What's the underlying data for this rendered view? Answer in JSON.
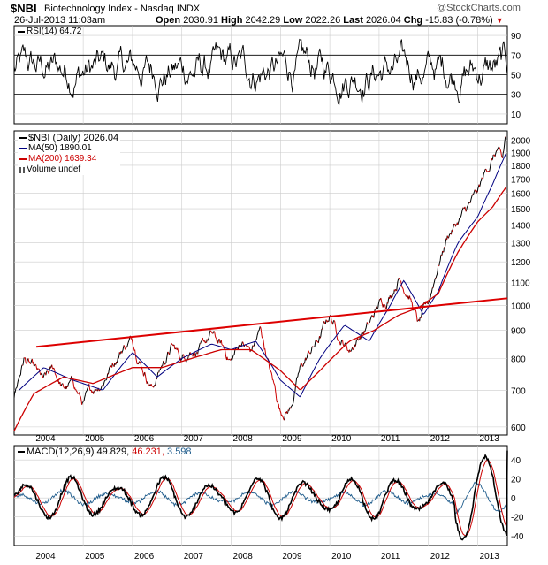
{
  "header": {
    "symbol": "$NBI",
    "name": "Biotechnology Index - Nasdaq INDX",
    "watermark": "@StockCharts.com",
    "date": "26-Jul-2013 11:03am",
    "open_label": "Open",
    "open": "2030.91",
    "high_label": "High",
    "high": "2042.29",
    "low_label": "Low",
    "low": "2022.26",
    "last_label": "Last",
    "last": "2026.04",
    "chg_label": "Chg",
    "chg": "-15.83 (-0.78%)",
    "chg_arrow": "▼"
  },
  "colors": {
    "price": "#000000",
    "price_red": "#cc0000",
    "ma50": "#000080",
    "ma200": "#cc0000",
    "trend": "#dd0000",
    "macd_signal": "#cc0000",
    "macd_hist": "#1f5c8c",
    "grid": "#cccccc"
  },
  "rsi_panel": {
    "legend": "RSI(14) 64.72",
    "ticks": [
      "90",
      "70",
      "50",
      "30",
      "10"
    ]
  },
  "price_panel": {
    "legend": [
      {
        "text": "$NBI (Daily) 2026.04",
        "color": "#000000",
        "kind": "line"
      },
      {
        "text": "MA(50) 1890.01",
        "color": "#000080",
        "kind": "line"
      },
      {
        "text": "MA(200) 1639.34",
        "color": "#cc0000",
        "kind": "line"
      },
      {
        "text": "Volume undef",
        "color": "#555555",
        "kind": "bars"
      }
    ],
    "ticks": [
      "2000",
      "1900",
      "1800",
      "1700",
      "1600",
      "1500",
      "1400",
      "1300",
      "1200",
      "1100",
      "1000",
      "900",
      "800",
      "700",
      "600"
    ]
  },
  "macd_panel": {
    "legend_name": "MACD(12,26,9)",
    "legend_macd": "49.829,",
    "legend_signal": "46.231,",
    "legend_hist": "3.598",
    "ticks": [
      "40",
      "20",
      "0",
      "-20",
      "-40"
    ]
  },
  "x_axis": {
    "years": [
      "2004",
      "2005",
      "2006",
      "2007",
      "2008",
      "2009",
      "2010",
      "2011",
      "2012",
      "2013"
    ]
  },
  "chart_data": [
    {
      "type": "line",
      "title": "RSI(14)",
      "ylim": [
        0,
        100
      ],
      "yticks": [
        10,
        30,
        50,
        70,
        90
      ],
      "reference_lines": [
        30,
        50,
        70
      ],
      "last_value": 64.72,
      "x": [
        2003.6,
        2013.6
      ]
    },
    {
      "type": "line",
      "title": "$NBI (Daily)",
      "ylabel": "",
      "xlabel": "",
      "ylim": [
        580,
        2080
      ],
      "xlim": [
        2003.6,
        2013.6
      ],
      "series": [
        {
          "name": "$NBI (Daily)",
          "x": [
            2003.6,
            2003.8,
            2004.0,
            2004.2,
            2004.4,
            2004.6,
            2004.8,
            2005.0,
            2005.2,
            2005.4,
            2005.6,
            2005.8,
            2006.0,
            2006.2,
            2006.4,
            2006.6,
            2006.8,
            2007.0,
            2007.2,
            2007.4,
            2007.6,
            2007.8,
            2008.0,
            2008.2,
            2008.4,
            2008.6,
            2008.8,
            2009.0,
            2009.2,
            2009.4,
            2009.6,
            2009.8,
            2010.0,
            2010.2,
            2010.4,
            2010.6,
            2010.8,
            2011.0,
            2011.2,
            2011.4,
            2011.6,
            2011.8,
            2012.0,
            2012.2,
            2012.4,
            2012.6,
            2012.8,
            2013.0,
            2013.2,
            2013.4,
            2013.5,
            2013.57
          ],
          "values": [
            680,
            800,
            760,
            720,
            760,
            700,
            720,
            660,
            700,
            730,
            790,
            840,
            870,
            780,
            710,
            780,
            840,
            800,
            840,
            830,
            880,
            840,
            790,
            860,
            820,
            900,
            750,
            640,
            650,
            760,
            820,
            870,
            960,
            880,
            830,
            880,
            920,
            1000,
            1040,
            1130,
            1060,
            920,
            1000,
            1190,
            1350,
            1420,
            1500,
            1590,
            1780,
            1920,
            1800,
            2026
          ]
        },
        {
          "name": "MA(50)",
          "last_value": 1890.01,
          "x": [
            2003.7,
            2004.2,
            2004.8,
            2005.4,
            2006.0,
            2006.5,
            2007.0,
            2007.6,
            2008.0,
            2008.5,
            2009.0,
            2009.4,
            2009.8,
            2010.3,
            2010.8,
            2011.2,
            2011.5,
            2011.9,
            2012.2,
            2012.6,
            2013.0,
            2013.3,
            2013.57
          ],
          "values": [
            700,
            770,
            730,
            700,
            820,
            740,
            800,
            850,
            830,
            860,
            730,
            680,
            800,
            920,
            860,
            990,
            1110,
            960,
            1060,
            1300,
            1450,
            1660,
            1890
          ]
        },
        {
          "name": "MA(200)",
          "last_value": 1639.34,
          "x": [
            2003.6,
            2004.0,
            2004.6,
            2005.2,
            2006.0,
            2006.6,
            2007.2,
            2007.8,
            2008.4,
            2009.0,
            2009.4,
            2009.8,
            2010.4,
            2010.9,
            2011.4,
            2011.8,
            2012.2,
            2012.6,
            2013.0,
            2013.3,
            2013.57
          ],
          "values": [
            590,
            690,
            740,
            720,
            770,
            770,
            800,
            830,
            830,
            760,
            700,
            760,
            860,
            900,
            960,
            990,
            1050,
            1250,
            1420,
            1510,
            1640
          ]
        },
        {
          "name": "Trend line",
          "x": [
            2004.05,
            2013.6
          ],
          "values": [
            840,
            1030
          ]
        }
      ]
    },
    {
      "type": "line",
      "title": "MACD(12,26,9)",
      "ylim": [
        -50,
        55
      ],
      "yticks": [
        -40,
        -20,
        0,
        20,
        40
      ],
      "series": [
        {
          "name": "MACD",
          "last_value": 49.829
        },
        {
          "name": "Signal",
          "last_value": 46.231
        },
        {
          "name": "Histogram",
          "last_value": 3.598
        }
      ]
    }
  ]
}
